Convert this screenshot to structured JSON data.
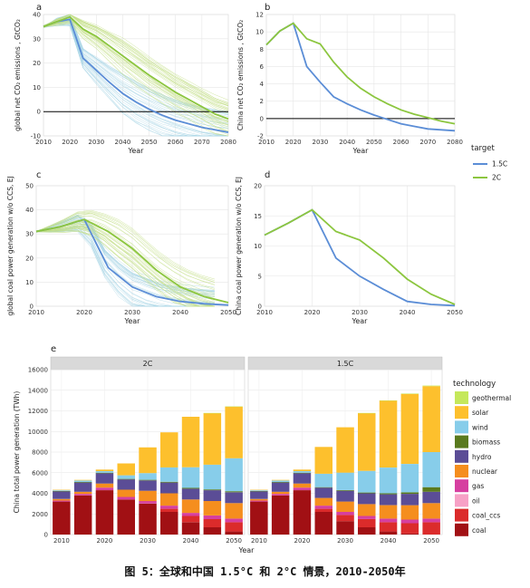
{
  "caption": "图 5：全球和中国 1.5°C 和 2°C 情景，2010-2050年",
  "colors": {
    "c15": "#5B8DD6",
    "c2": "#8CC63F",
    "ens15": "#A9D5E6",
    "ens2": "#C2DE84"
  },
  "target_legend": {
    "title": "target",
    "items": [
      "1.5C",
      "2C"
    ]
  },
  "chart_data": [
    {
      "panel": "a",
      "type": "line",
      "ylabel": "global net CO₂ emissions , GtCO₂",
      "xlabel": "Year",
      "xlim": [
        2010,
        2080
      ],
      "ylim": [
        -10,
        40
      ],
      "xticks": [
        2010,
        2020,
        2030,
        2040,
        2050,
        2060,
        2070,
        2080
      ],
      "yticks": [
        -10,
        0,
        10,
        20,
        30,
        40
      ],
      "hline": 0,
      "grid": true,
      "series": [
        {
          "name": "1.5C",
          "x": [
            2010,
            2015,
            2020,
            2025,
            2030,
            2035,
            2040,
            2045,
            2050,
            2055,
            2060,
            2065,
            2070,
            2075,
            2080
          ],
          "values": [
            35,
            37,
            38,
            22,
            17,
            12,
            7.5,
            4,
            1,
            -1.5,
            -3.5,
            -5,
            -6.5,
            -7.5,
            -8.5
          ]
        },
        {
          "name": "2C",
          "x": [
            2010,
            2015,
            2020,
            2025,
            2030,
            2035,
            2040,
            2045,
            2050,
            2055,
            2060,
            2065,
            2070,
            2075,
            2080
          ],
          "values": [
            35,
            37,
            39,
            34,
            31,
            27,
            23,
            19,
            15,
            11.5,
            8,
            5,
            2,
            -1,
            -3
          ]
        }
      ]
    },
    {
      "panel": "b",
      "type": "line",
      "ylabel": "China net CO₂ emissions , GtCO₂",
      "xlabel": "Year",
      "xlim": [
        2010,
        2080
      ],
      "ylim": [
        -2,
        12
      ],
      "xticks": [
        2010,
        2020,
        2030,
        2040,
        2050,
        2060,
        2070,
        2080
      ],
      "yticks": [
        -2,
        0,
        2,
        4,
        6,
        8,
        10,
        12
      ],
      "hline": 0,
      "grid": true,
      "series": [
        {
          "name": "1.5C",
          "x": [
            2010,
            2015,
            2020,
            2025,
            2030,
            2035,
            2040,
            2045,
            2050,
            2055,
            2060,
            2065,
            2070,
            2075,
            2080
          ],
          "values": [
            8.5,
            10.1,
            11,
            6,
            4.2,
            2.5,
            1.7,
            1,
            0.4,
            -0.1,
            -0.6,
            -0.9,
            -1.2,
            -1.3,
            -1.4
          ]
        },
        {
          "name": "2C",
          "x": [
            2010,
            2015,
            2020,
            2025,
            2030,
            2035,
            2040,
            2045,
            2050,
            2055,
            2060,
            2065,
            2070,
            2075,
            2080
          ],
          "values": [
            8.5,
            10.1,
            11,
            9.2,
            8.6,
            6.5,
            4.8,
            3.5,
            2.5,
            1.7,
            1,
            0.5,
            0.1,
            -0.3,
            -0.6
          ]
        }
      ]
    },
    {
      "panel": "c",
      "type": "line",
      "ylabel": "global coal power generation w/o CCS, EJ",
      "xlabel": "Year",
      "xlim": [
        2010,
        2050
      ],
      "ylim": [
        0,
        50
      ],
      "xticks": [
        2010,
        2020,
        2030,
        2040,
        2050
      ],
      "yticks": [
        0,
        10,
        20,
        30,
        40,
        50
      ],
      "grid": true,
      "series": [
        {
          "name": "1.5C",
          "x": [
            2010,
            2015,
            2020,
            2025,
            2030,
            2035,
            2040,
            2045,
            2050
          ],
          "values": [
            31,
            33,
            36,
            16,
            8,
            4,
            2,
            1,
            0.5
          ]
        },
        {
          "name": "2C",
          "x": [
            2010,
            2015,
            2020,
            2025,
            2030,
            2035,
            2040,
            2045,
            2050
          ],
          "values": [
            31,
            33,
            36,
            31,
            24,
            15,
            8,
            4,
            1.5
          ]
        }
      ]
    },
    {
      "panel": "d",
      "type": "line",
      "ylabel": "China coal power generation w/o CCS, EJ",
      "xlabel": "Year",
      "xlim": [
        2010,
        2050
      ],
      "ylim": [
        0,
        20
      ],
      "xticks": [
        2010,
        2020,
        2030,
        2040,
        2050
      ],
      "yticks": [
        0,
        5,
        10,
        15,
        20
      ],
      "grid": true,
      "series": [
        {
          "name": "1.5C",
          "x": [
            2010,
            2015,
            2020,
            2025,
            2030,
            2035,
            2040,
            2045,
            2050
          ],
          "values": [
            11.8,
            13.8,
            16,
            8,
            5,
            2.8,
            0.8,
            0.3,
            0.1
          ]
        },
        {
          "name": "2C",
          "x": [
            2010,
            2015,
            2020,
            2025,
            2030,
            2035,
            2040,
            2045,
            2050
          ],
          "values": [
            11.8,
            13.8,
            16,
            12.4,
            11,
            8,
            4.5,
            2,
            0.3
          ]
        }
      ]
    },
    {
      "panel": "e",
      "type": "bar",
      "ylabel": "China total power generation (TWh)",
      "xlabel": "Year",
      "ylim": [
        0,
        16000
      ],
      "yticks": [
        0,
        2000,
        4000,
        6000,
        8000,
        10000,
        12000,
        14000,
        16000
      ],
      "xticks": [
        2010,
        2020,
        2030,
        2040,
        2050
      ],
      "x": [
        2010,
        2015,
        2020,
        2025,
        2030,
        2035,
        2040,
        2045,
        2050
      ],
      "legend_title": "technology",
      "technologies": [
        "geothermal",
        "solar",
        "wind",
        "biomass",
        "hydro",
        "nuclear",
        "gas",
        "oil",
        "coal_ccs",
        "coal"
      ],
      "tech_colors": {
        "geothermal": "#C5E85B",
        "solar": "#FDC02D",
        "wind": "#87CDEA",
        "biomass": "#5A7A1E",
        "hydro": "#5B4D96",
        "nuclear": "#F58E1E",
        "gas": "#D63FA0",
        "oil": "#F7A1C6",
        "coal_ccs": "#DB2B2B",
        "coal": "#A11014"
      },
      "facets": [
        {
          "name": "2C",
          "stacks": [
            {
              "coal": 3200,
              "coal_ccs": 0,
              "oil": 0,
              "gas": 100,
              "nuclear": 150,
              "hydro": 750,
              "biomass": 30,
              "wind": 100,
              "solar": 10,
              "geothermal": 0
            },
            {
              "coal": 3800,
              "coal_ccs": 0,
              "oil": 0,
              "gas": 150,
              "nuclear": 200,
              "hydro": 900,
              "biomass": 50,
              "wind": 150,
              "solar": 50,
              "geothermal": 0
            },
            {
              "coal": 4300,
              "coal_ccs": 0,
              "oil": 0,
              "gas": 250,
              "nuclear": 400,
              "hydro": 1000,
              "biomass": 50,
              "wind": 150,
              "solar": 150,
              "geothermal": 0
            },
            {
              "coal": 3400,
              "coal_ccs": 0,
              "oil": 0,
              "gas": 250,
              "nuclear": 700,
              "hydro": 1000,
              "biomass": 50,
              "wind": 350,
              "solar": 1150,
              "geothermal": 0
            },
            {
              "coal": 3000,
              "coal_ccs": 0,
              "oil": 0,
              "gas": 250,
              "nuclear": 1000,
              "hydro": 1000,
              "biomass": 60,
              "wind": 650,
              "solar": 2500,
              "geothermal": 0
            },
            {
              "coal": 2200,
              "coal_ccs": 300,
              "oil": 0,
              "gas": 300,
              "nuclear": 1200,
              "hydro": 1050,
              "biomass": 70,
              "wind": 1400,
              "solar": 3400,
              "geothermal": 0
            },
            {
              "coal": 1200,
              "coal_ccs": 600,
              "oil": 0,
              "gas": 300,
              "nuclear": 1300,
              "hydro": 1050,
              "biomass": 80,
              "wind": 2000,
              "solar": 4900,
              "geothermal": 0
            },
            {
              "coal": 700,
              "coal_ccs": 800,
              "oil": 0,
              "gas": 350,
              "nuclear": 1400,
              "hydro": 1050,
              "biomass": 80,
              "wind": 2400,
              "solar": 5000,
              "geothermal": 20
            },
            {
              "coal": 300,
              "coal_ccs": 900,
              "oil": 0,
              "gas": 350,
              "nuclear": 1500,
              "hydro": 1050,
              "biomass": 100,
              "wind": 3200,
              "solar": 5000,
              "geothermal": 30
            }
          ]
        },
        {
          "name": "1.5C",
          "stacks": [
            {
              "coal": 3200,
              "coal_ccs": 0,
              "oil": 0,
              "gas": 100,
              "nuclear": 150,
              "hydro": 750,
              "biomass": 30,
              "wind": 100,
              "solar": 10,
              "geothermal": 0
            },
            {
              "coal": 3800,
              "coal_ccs": 0,
              "oil": 0,
              "gas": 150,
              "nuclear": 200,
              "hydro": 900,
              "biomass": 50,
              "wind": 150,
              "solar": 50,
              "geothermal": 0
            },
            {
              "coal": 4300,
              "coal_ccs": 0,
              "oil": 0,
              "gas": 250,
              "nuclear": 400,
              "hydro": 1000,
              "biomass": 50,
              "wind": 150,
              "solar": 150,
              "geothermal": 0
            },
            {
              "coal": 2200,
              "coal_ccs": 300,
              "oil": 0,
              "gas": 300,
              "nuclear": 750,
              "hydro": 1000,
              "biomass": 50,
              "wind": 1300,
              "solar": 2600,
              "geothermal": 0
            },
            {
              "coal": 1300,
              "coal_ccs": 600,
              "oil": 0,
              "gas": 300,
              "nuclear": 1000,
              "hydro": 1050,
              "biomass": 60,
              "wind": 1700,
              "solar": 4400,
              "geothermal": 0
            },
            {
              "coal": 700,
              "coal_ccs": 800,
              "oil": 0,
              "gas": 300,
              "nuclear": 1150,
              "hydro": 1050,
              "biomass": 80,
              "wind": 2100,
              "solar": 5600,
              "geothermal": 20
            },
            {
              "coal": 300,
              "coal_ccs": 900,
              "oil": 0,
              "gas": 350,
              "nuclear": 1300,
              "hydro": 1050,
              "biomass": 100,
              "wind": 2500,
              "solar": 6500,
              "geothermal": 20
            },
            {
              "coal": 100,
              "coal_ccs": 1000,
              "oil": 0,
              "gas": 350,
              "nuclear": 1400,
              "hydro": 1100,
              "biomass": 150,
              "wind": 2750,
              "solar": 6800,
              "geothermal": 30
            },
            {
              "coal": 0,
              "coal_ccs": 1200,
              "oil": 0,
              "gas": 350,
              "nuclear": 1500,
              "hydro": 1100,
              "biomass": 450,
              "wind": 3400,
              "solar": 6400,
              "geothermal": 50
            }
          ]
        }
      ]
    }
  ]
}
